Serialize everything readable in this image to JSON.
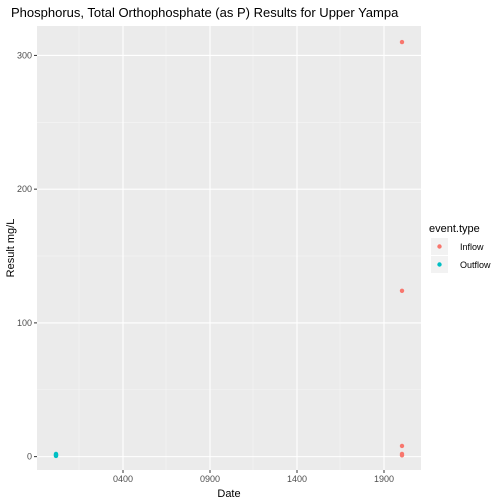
{
  "chart_data": {
    "type": "scatter",
    "title": "Phosphorus, Total Orthophosphate (as P) Results for Upper Yampa",
    "xlabel": "Date",
    "ylabel": "Result mg/L",
    "x_ticks": [
      "0400",
      "0900",
      "1400",
      "1900"
    ],
    "y_ticks": [
      0,
      100,
      200,
      300
    ],
    "ylim": [
      -10,
      322
    ],
    "grid": true,
    "legend": {
      "title": "event.type",
      "position": "right",
      "entries": [
        {
          "name": "Inflow",
          "color": "#F8766D"
        },
        {
          "name": "Outflow",
          "color": "#00BFC4"
        }
      ]
    },
    "series": [
      {
        "name": "Inflow",
        "color": "#F8766D",
        "points": [
          {
            "x": "1900",
            "y": 310
          },
          {
            "x": "1900",
            "y": 124
          },
          {
            "x": "1900",
            "y": 8
          },
          {
            "x": "1900",
            "y": 2
          },
          {
            "x": "1900",
            "y": 1
          }
        ]
      },
      {
        "name": "Outflow",
        "color": "#00BFC4",
        "points": [
          {
            "x": "start",
            "y": 2
          },
          {
            "x": "start",
            "y": 1.5
          },
          {
            "x": "start",
            "y": 1
          },
          {
            "x": "start",
            "y": 0.5
          }
        ]
      }
    ]
  }
}
